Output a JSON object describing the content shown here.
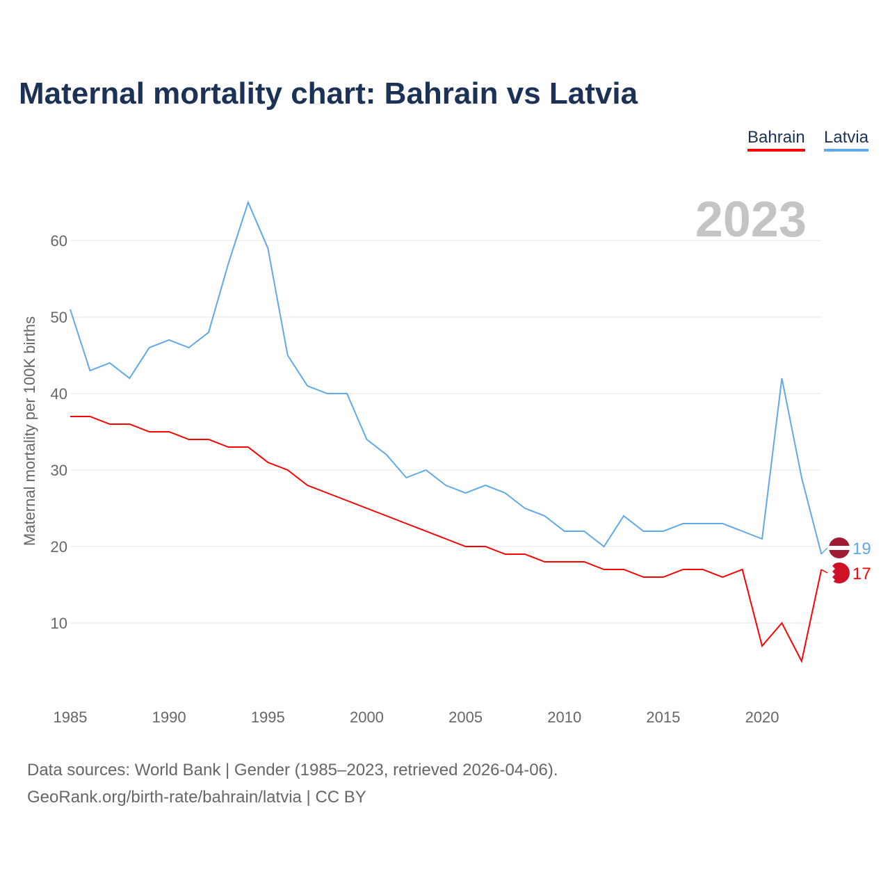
{
  "chart_data": {
    "type": "line",
    "title": "Maternal mortality chart: Bahrain vs Latvia",
    "ylabel": "Maternal mortality per 100K births",
    "xlabel": "",
    "year_label": "2023",
    "x": [
      1985,
      1986,
      1987,
      1988,
      1989,
      1990,
      1991,
      1992,
      1993,
      1994,
      1995,
      1996,
      1997,
      1998,
      1999,
      2000,
      2001,
      2002,
      2003,
      2004,
      2005,
      2006,
      2007,
      2008,
      2009,
      2010,
      2011,
      2012,
      2013,
      2014,
      2015,
      2016,
      2017,
      2018,
      2019,
      2020,
      2021,
      2022,
      2023
    ],
    "xticks": [
      1985,
      1990,
      1995,
      2000,
      2005,
      2010,
      2015,
      2020
    ],
    "yticks": [
      10,
      20,
      30,
      40,
      50,
      60
    ],
    "xlim": [
      1985,
      2023
    ],
    "ylim": [
      0,
      65
    ],
    "grid": true,
    "legend_position": "top-right",
    "series": [
      {
        "name": "Bahrain",
        "color": "#ff0000",
        "end_label": "17",
        "values": [
          37,
          37,
          36,
          36,
          35,
          35,
          34,
          34,
          33,
          33,
          31,
          30,
          28,
          27,
          26,
          25,
          24,
          23,
          22,
          21,
          20,
          20,
          19,
          19,
          18,
          18,
          18,
          17,
          17,
          16,
          16,
          17,
          17,
          16,
          17,
          7,
          10,
          5,
          17
        ]
      },
      {
        "name": "Latvia",
        "color": "#5fa8ea",
        "end_label": "19",
        "values": [
          51,
          43,
          44,
          42,
          46,
          47,
          46,
          48,
          57,
          65,
          59,
          45,
          41,
          40,
          40,
          34,
          32,
          29,
          30,
          28,
          27,
          28,
          27,
          25,
          24,
          22,
          22,
          20,
          24,
          22,
          22,
          23,
          23,
          23,
          22,
          21,
          42,
          29,
          19
        ]
      }
    ]
  },
  "footer": {
    "line1": "Data sources: World Bank | Gender (1985–2023, retrieved 2026-04-06).",
    "line2": "GeoRank.org/birth-rate/bahrain/latvia | CC BY"
  }
}
